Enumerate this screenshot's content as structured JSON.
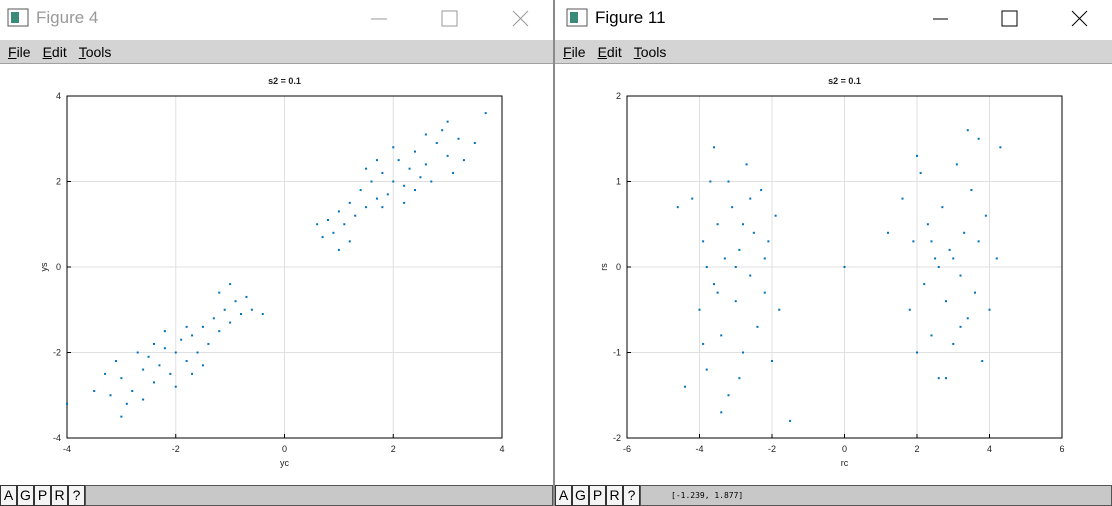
{
  "windows": [
    {
      "title": "Figure 4",
      "menu": [
        "File",
        "Edit",
        "Tools"
      ],
      "buttons": [
        "A",
        "G",
        "P",
        "R",
        "?"
      ]
    },
    {
      "title": "Figure 11",
      "menu": [
        "File",
        "Edit",
        "Tools"
      ],
      "buttons": [
        "A",
        "G",
        "P",
        "R",
        "?"
      ],
      "status": "[-1.239, 1.877]"
    }
  ],
  "chart_data": [
    {
      "type": "scatter",
      "title": "s2 = 0.1",
      "xlabel": "yc",
      "ylabel": "ys",
      "color": "#0072bd",
      "grid": true,
      "xlim": [
        -4,
        4
      ],
      "ylim": [
        -4,
        4
      ],
      "xticks": [
        -4,
        -2,
        0,
        2,
        4
      ],
      "yticks": [
        -4,
        -2,
        0,
        2,
        4
      ],
      "x": [
        -3.2,
        -3.0,
        -2.8,
        -2.6,
        -2.5,
        -2.4,
        -2.3,
        -2.2,
        -2.1,
        -2.0,
        -1.9,
        -1.8,
        -1.7,
        -1.6,
        -1.5,
        -1.4,
        -1.3,
        -1.2,
        -1.1,
        -1.0,
        -0.9,
        -0.8,
        -0.6,
        -3.5,
        -3.3,
        -2.9,
        -2.7,
        -2.4,
        -2.0,
        -1.8,
        -1.5,
        -1.2,
        -0.7,
        -3.0,
        -2.6,
        -1.0,
        -2.2,
        -1.7,
        -3.1,
        -0.4,
        -4.0,
        3.2,
        3.0,
        2.8,
        2.6,
        2.5,
        2.4,
        2.3,
        2.2,
        2.1,
        2.0,
        1.9,
        1.8,
        1.7,
        1.6,
        1.5,
        1.4,
        1.3,
        1.2,
        1.1,
        1.0,
        0.9,
        0.8,
        0.6,
        3.5,
        3.3,
        2.9,
        2.7,
        2.4,
        2.0,
        1.8,
        1.5,
        1.2,
        0.7,
        3.0,
        2.6,
        1.0,
        2.2,
        1.7,
        3.1,
        3.7
      ],
      "y": [
        -3.0,
        -2.6,
        -2.9,
        -2.4,
        -2.1,
        -2.7,
        -2.3,
        -1.9,
        -2.5,
        -2.0,
        -1.7,
        -2.2,
        -1.6,
        -2.0,
        -1.4,
        -1.8,
        -1.2,
        -1.5,
        -1.0,
        -1.3,
        -0.8,
        -1.1,
        -1.0,
        -2.9,
        -2.5,
        -3.2,
        -2.0,
        -1.8,
        -2.8,
        -1.4,
        -2.3,
        -0.6,
        -0.7,
        -3.5,
        -3.1,
        -0.4,
        -1.5,
        -2.5,
        -2.2,
        -1.1,
        -3.2,
        3.0,
        2.6,
        2.9,
        2.4,
        2.1,
        2.7,
        2.3,
        1.9,
        2.5,
        2.0,
        1.7,
        2.2,
        1.6,
        2.0,
        1.4,
        1.8,
        1.2,
        1.5,
        1.0,
        1.3,
        0.8,
        1.1,
        1.0,
        2.9,
        2.5,
        3.2,
        2.0,
        1.8,
        2.8,
        1.4,
        2.3,
        0.6,
        0.7,
        3.4,
        3.1,
        0.4,
        1.5,
        2.5,
        2.2,
        3.6
      ]
    },
    {
      "type": "scatter",
      "title": "s2 = 0.1",
      "xlabel": "rc",
      "ylabel": "rs",
      "color": "#0072bd",
      "grid": true,
      "xlim": [
        -6,
        6
      ],
      "ylim": [
        -2,
        2
      ],
      "xticks": [
        -6,
        -4,
        -2,
        0,
        2,
        4,
        6
      ],
      "yticks": [
        -2,
        -1,
        0,
        1,
        2
      ],
      "x": [
        -4.2,
        -4.0,
        -3.9,
        -3.8,
        -3.7,
        -3.6,
        -3.5,
        -3.4,
        -3.3,
        -3.2,
        -3.1,
        -3.0,
        -2.9,
        -2.8,
        -2.7,
        -2.6,
        -2.5,
        -2.4,
        -2.3,
        -2.2,
        -2.1,
        -2.0,
        -1.9,
        -1.8,
        -3.6,
        -3.4,
        -4.4,
        -3.9,
        -2.9,
        -3.2,
        -2.6,
        -3.8,
        -1.5,
        -4.6,
        -2.2,
        -3.0,
        -3.5,
        -2.8,
        1.6,
        1.8,
        1.9,
        2.0,
        2.1,
        2.2,
        2.3,
        2.4,
        2.5,
        2.6,
        2.7,
        2.8,
        2.9,
        3.0,
        3.1,
        3.2,
        3.3,
        3.4,
        3.5,
        3.6,
        3.7,
        3.8,
        3.9,
        4.0,
        3.4,
        2.8,
        4.3,
        1.2,
        2.0,
        3.7,
        4.2,
        2.6,
        3.0,
        2.4,
        3.2,
        0.0
      ],
      "y": [
        0.8,
        -0.5,
        0.3,
        -1.2,
        1.0,
        -0.2,
        0.5,
        -0.8,
        0.1,
        -1.5,
        0.7,
        -0.4,
        0.2,
        -1.0,
        1.2,
        -0.1,
        0.4,
        -0.7,
        0.9,
        -0.3,
        0.3,
        -1.1,
        0.6,
        -0.5,
        1.4,
        -1.7,
        -1.4,
        -0.9,
        -1.3,
        1.0,
        0.8,
        0.0,
        -1.8,
        0.7,
        0.1,
        0.0,
        -0.3,
        0.5,
        0.8,
        -0.5,
        0.3,
        -1.0,
        1.1,
        -0.2,
        0.5,
        -0.8,
        0.1,
        -1.3,
        0.7,
        -0.4,
        0.2,
        -0.9,
        1.2,
        -0.1,
        0.4,
        -0.6,
        0.9,
        -0.3,
        0.3,
        -1.1,
        0.6,
        -0.5,
        1.6,
        -1.3,
        1.4,
        0.4,
        1.3,
        1.5,
        0.1,
        0.0,
        0.1,
        0.3,
        -0.7,
        0.0
      ]
    }
  ]
}
